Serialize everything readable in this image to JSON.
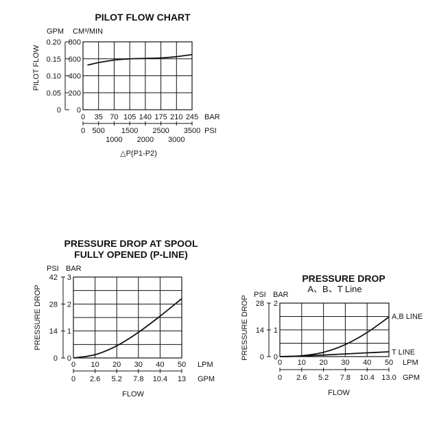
{
  "chart_data": [
    {
      "type": "line",
      "title": "PILOT FLOW CHART",
      "ylabel": "PILOT FLOW",
      "y_units": [
        "GPM",
        "CM³/MIN"
      ],
      "yticks_gpm": [
        "0.20",
        "0.15",
        "0.10",
        "0.05",
        "0"
      ],
      "yticks_cm3": [
        "800",
        "600",
        "400",
        "200",
        "0"
      ],
      "x_bar_unit": "BAR",
      "x_bar_ticks": [
        "0",
        "35",
        "70",
        "105",
        "140",
        "175",
        "210",
        "245"
      ],
      "x_psi_unit": "PSI",
      "x_psi_ticks_upper": [
        "0",
        "500",
        "1500",
        "2500",
        "3500"
      ],
      "x_psi_ticks_lower": [
        "1000",
        "2000",
        "3000"
      ],
      "xlabel": "△P(P1-P2)",
      "xlim": [
        0,
        245
      ],
      "ylim": [
        0,
        800
      ],
      "series": [
        {
          "x": [
            10,
            35,
            70,
            105,
            140,
            175,
            210,
            245
          ],
          "y": [
            525,
            555,
            585,
            600,
            605,
            610,
            625,
            650
          ]
        }
      ]
    },
    {
      "type": "line",
      "title": [
        "PRESSURE DROP AT SPOOL",
        "FULLY OPENED (P-LINE)"
      ],
      "ylabel": "PRESSURE DROP",
      "y_units": [
        "PSI",
        "BAR"
      ],
      "yticks_psi": [
        "42",
        "28",
        "14",
        "0"
      ],
      "yticks_bar": [
        "3",
        "2",
        "1",
        "0"
      ],
      "x_lpm_unit": "LPM",
      "x_lpm_ticks": [
        "0",
        "10",
        "20",
        "30",
        "40",
        "50"
      ],
      "x_gpm_unit": "GPM",
      "x_gpm_ticks": [
        "0",
        "2.6",
        "5.2",
        "7.8",
        "10.4",
        "13"
      ],
      "xlabel": "FLOW",
      "xlim": [
        0,
        50
      ],
      "ylim": [
        0,
        3
      ],
      "series": [
        {
          "x": [
            0,
            10,
            20,
            30,
            40,
            50
          ],
          "y": [
            0,
            0.12,
            0.45,
            0.95,
            1.55,
            2.2
          ]
        }
      ]
    },
    {
      "type": "line",
      "title": [
        "PRESSURE DROP",
        "A、B、T Line"
      ],
      "ylabel": "PRESSURE DROP",
      "y_units": [
        "PSI",
        "BAR"
      ],
      "yticks_psi": [
        "28",
        "14",
        "0"
      ],
      "yticks_bar": [
        "2",
        "1",
        "0"
      ],
      "x_lpm_unit": "LPM",
      "x_lpm_ticks": [
        "0",
        "10",
        "20",
        "30",
        "40",
        "50"
      ],
      "x_gpm_unit": "GPM",
      "x_gpm_ticks": [
        "0",
        "2.6",
        "5.2",
        "7.8",
        "10.4",
        "13.0"
      ],
      "xlabel": "FLOW",
      "xlim": [
        0,
        50
      ],
      "ylim": [
        0,
        2
      ],
      "series": [
        {
          "name": "A,B LINE",
          "x": [
            0,
            10,
            20,
            30,
            40,
            50
          ],
          "y": [
            0,
            0.03,
            0.16,
            0.45,
            0.9,
            1.48
          ]
        },
        {
          "name": "T LINE",
          "x": [
            0,
            10,
            20,
            30,
            40,
            50
          ],
          "y": [
            0,
            0.02,
            0.06,
            0.1,
            0.14,
            0.18
          ]
        }
      ]
    }
  ]
}
